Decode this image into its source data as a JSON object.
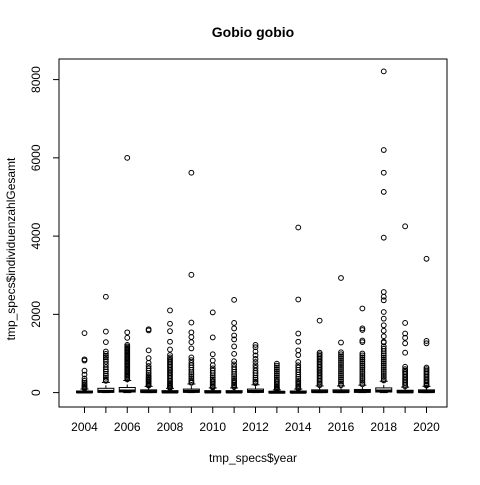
{
  "chart_data": {
    "type": "boxplot",
    "title": "Gobio gobio",
    "xlabel": "tmp_specs$year",
    "ylabel": "tmp_specs$individuenzahlGesamt",
    "ylim": [
      -100,
      8400
    ],
    "yticks": [
      0,
      2000,
      4000,
      6000,
      8000
    ],
    "xtick_labels": [
      "2004",
      "2006",
      "2008",
      "2010",
      "2012",
      "2014",
      "2016",
      "2018",
      "2020"
    ],
    "grid": false,
    "legend": "none",
    "categories": [
      "2004",
      "2005",
      "2006",
      "2007",
      "2008",
      "2009",
      "2010",
      "2011",
      "2012",
      "2013",
      "2014",
      "2015",
      "2016",
      "2017",
      "2018",
      "2019",
      "2020"
    ],
    "boxes": [
      {
        "year": "2004",
        "q1": 5,
        "median": 15,
        "q3": 40,
        "whisker_high": 90,
        "outliers": [
          1520,
          850,
          820,
          560,
          460,
          360,
          300,
          250,
          210,
          180,
          150,
          130,
          110
        ]
      },
      {
        "year": "2005",
        "q1": 10,
        "median": 30,
        "q3": 110,
        "whisker_high": 260,
        "outliers": [
          2450,
          1560,
          1290,
          1050,
          990,
          940,
          900,
          850,
          790,
          720,
          650,
          590,
          540,
          480,
          430,
          380,
          330,
          300
        ]
      },
      {
        "year": "2006",
        "q1": 15,
        "median": 40,
        "q3": 130,
        "whisker_high": 310,
        "outliers": [
          6000,
          1540,
          1400,
          1220,
          1180,
          1150,
          1120,
          1090,
          1060,
          1030,
          1000,
          970,
          940,
          910,
          880,
          850,
          820,
          790,
          760,
          730,
          700,
          670,
          640,
          610,
          580,
          550,
          520,
          490,
          460,
          430,
          400,
          370,
          340
        ]
      },
      {
        "year": "2007",
        "q1": 10,
        "median": 25,
        "q3": 70,
        "whisker_high": 160,
        "outliers": [
          1620,
          1590,
          1080,
          880,
          760,
          680,
          620,
          560,
          500,
          450,
          410,
          380,
          350,
          320,
          290,
          260,
          230,
          200,
          180
        ]
      },
      {
        "year": "2008",
        "q1": 5,
        "median": 15,
        "q3": 50,
        "whisker_high": 110,
        "outliers": [
          2100,
          1760,
          1570,
          1300,
          1100,
          960,
          900,
          860,
          820,
          780,
          740,
          700,
          660,
          620,
          580,
          540,
          500,
          460,
          420,
          380,
          340,
          300,
          260,
          230,
          200,
          170,
          140,
          120
        ]
      },
      {
        "year": "2009",
        "q1": 10,
        "median": 30,
        "q3": 90,
        "whisker_high": 220,
        "outliers": [
          5620,
          3010,
          1790,
          1540,
          1420,
          1290,
          1130,
          900,
          830,
          760,
          700,
          640,
          580,
          520,
          470,
          420,
          370,
          320,
          280,
          250
        ]
      },
      {
        "year": "2010",
        "q1": 5,
        "median": 15,
        "q3": 50,
        "whisker_high": 120,
        "outliers": [
          2050,
          1410,
          980,
          820,
          700,
          620,
          560,
          500,
          440,
          390,
          340,
          300,
          260,
          220,
          180,
          150,
          130
        ]
      },
      {
        "year": "2011",
        "q1": 5,
        "median": 15,
        "q3": 50,
        "whisker_high": 120,
        "outliers": [
          2370,
          1780,
          1640,
          1460,
          1360,
          1180,
          990,
          800,
          720,
          650,
          590,
          530,
          470,
          420,
          370,
          320,
          280,
          240,
          200,
          170,
          140
        ]
      },
      {
        "year": "2012",
        "q1": 10,
        "median": 30,
        "q3": 90,
        "whisker_high": 200,
        "outliers": [
          1220,
          1160,
          1050,
          950,
          860,
          780,
          700,
          630,
          560,
          500,
          440,
          380,
          330,
          280,
          240
        ]
      },
      {
        "year": "2013",
        "q1": 3,
        "median": 10,
        "q3": 30,
        "whisker_high": 70,
        "outliers": [
          740,
          690,
          640,
          590,
          540,
          490,
          440,
          390,
          340,
          300,
          260,
          220,
          180,
          150,
          120,
          100,
          85
        ]
      },
      {
        "year": "2014",
        "q1": 3,
        "median": 10,
        "q3": 40,
        "whisker_high": 90,
        "outliers": [
          4220,
          2380,
          1510,
          1300,
          1080,
          960,
          780,
          700,
          640,
          580,
          520,
          460,
          400,
          350,
          300,
          260,
          220,
          180,
          150,
          120,
          105
        ]
      },
      {
        "year": "2015",
        "q1": 10,
        "median": 25,
        "q3": 70,
        "whisker_high": 170,
        "outliers": [
          1840,
          1020,
          980,
          940,
          900,
          860,
          820,
          780,
          740,
          700,
          660,
          620,
          580,
          540,
          500,
          460,
          420,
          380,
          340,
          300,
          260,
          220,
          190
        ]
      },
      {
        "year": "2016",
        "q1": 10,
        "median": 25,
        "q3": 70,
        "whisker_high": 170,
        "outliers": [
          2930,
          1280,
          1030,
          980,
          930,
          880,
          830,
          780,
          730,
          680,
          630,
          580,
          530,
          480,
          430,
          380,
          330,
          280,
          230,
          190
        ]
      },
      {
        "year": "2017",
        "q1": 10,
        "median": 30,
        "q3": 80,
        "whisker_high": 190,
        "outliers": [
          2150,
          1640,
          1600,
          1330,
          1290,
          1000,
          950,
          900,
          850,
          800,
          750,
          700,
          650,
          600,
          550,
          500,
          450,
          400,
          350,
          300,
          250,
          210
        ]
      },
      {
        "year": "2018",
        "q1": 15,
        "median": 40,
        "q3": 120,
        "whisker_high": 290,
        "outliers": [
          8210,
          6200,
          5620,
          5130,
          3960,
          2570,
          2450,
          2360,
          2060,
          1890,
          1720,
          1580,
          1440,
          1300,
          1280,
          1180,
          1120,
          1060,
          1000,
          950,
          900,
          850,
          800,
          750,
          700,
          650,
          600,
          550,
          500,
          450,
          400,
          350,
          310
        ]
      },
      {
        "year": "2019",
        "q1": 5,
        "median": 20,
        "q3": 60,
        "whisker_high": 140,
        "outliers": [
          4250,
          1780,
          1510,
          1400,
          1260,
          1020,
          660,
          600,
          560,
          520,
          480,
          440,
          400,
          360,
          320,
          280,
          240,
          200,
          160
        ]
      },
      {
        "year": "2020",
        "q1": 10,
        "median": 25,
        "q3": 70,
        "whisker_high": 160,
        "outliers": [
          3420,
          1320,
          1260,
          640,
          600,
          560,
          520,
          480,
          440,
          400,
          360,
          320,
          280,
          240,
          200,
          180
        ]
      }
    ]
  }
}
